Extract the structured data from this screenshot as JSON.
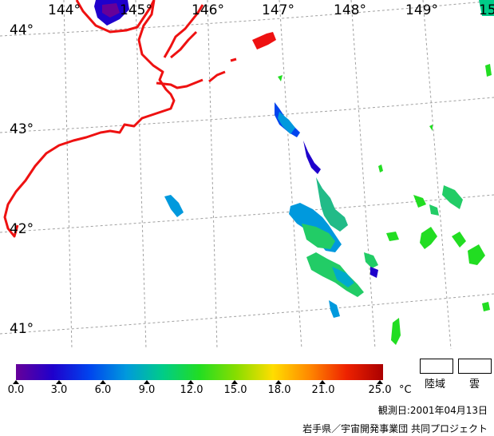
{
  "map": {
    "lat_labels": [
      "44°",
      "43°",
      "42°",
      "41°"
    ],
    "lon_labels": [
      "144°",
      "145°",
      "146°",
      "147°",
      "148°",
      "149°",
      "15"
    ],
    "coastline_color": "#ee1111",
    "grid_color": "#a0a0a0",
    "background_color": "#ffffff"
  },
  "legend": {
    "colorbar_stops": [
      "#660099",
      "#1f00cc",
      "#0044ee",
      "#0099dd",
      "#00cc88",
      "#22dd22",
      "#88dd00",
      "#ffdd00",
      "#ff8800",
      "#ee2200",
      "#aa0000"
    ],
    "ticks": [
      "0.0",
      "3.0",
      "6.0",
      "9.0",
      "12.0",
      "15.0",
      "18.0",
      "21.0",
      "25.0"
    ],
    "unit": "°C",
    "land_label": "陸域",
    "cloud_label": "雲"
  },
  "footer": {
    "observation_date": "観測日:2001年04月13日",
    "credit": "岩手県／宇宙開発事業団 共同プロジェクト"
  }
}
